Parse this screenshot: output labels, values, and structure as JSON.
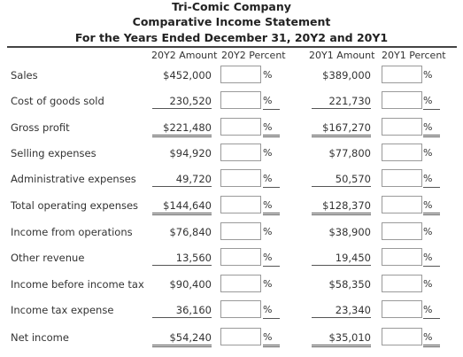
{
  "header": {
    "company": "Tri-Comic Company",
    "statement": "Comparative Income Statement",
    "period": "For the Years Ended December 31, 20Y2 and 20Y1"
  },
  "columns": {
    "y2_amount": "20Y2 Amount",
    "y2_percent": "20Y2 Percent",
    "y1_amount": "20Y1 Amount",
    "y1_percent": "20Y1 Percent"
  },
  "percent_sign": "%",
  "rows": [
    {
      "label": "Sales",
      "y2": "$452,000",
      "y1": "$389,000"
    },
    {
      "label": "Cost of goods sold",
      "y2": "230,520",
      "y1": "221,730"
    },
    {
      "label": "Gross profit",
      "y2": "$221,480",
      "y1": "$167,270"
    },
    {
      "label": "Selling expenses",
      "y2": "$94,920",
      "y1": "$77,800"
    },
    {
      "label": "Administrative expenses",
      "y2": "49,720",
      "y1": "50,570"
    },
    {
      "label": "Total operating expenses",
      "y2": "$144,640",
      "y1": "$128,370"
    },
    {
      "label": "Income from operations",
      "y2": "$76,840",
      "y1": "$38,900"
    },
    {
      "label": "Other revenue",
      "y2": "13,560",
      "y1": "19,450"
    },
    {
      "label": "Income before income tax",
      "y2": "$90,400",
      "y1": "$58,350"
    },
    {
      "label": "Income tax expense",
      "y2": "36,160",
      "y1": "23,340"
    },
    {
      "label": "Net income",
      "y2": "$54,240",
      "y1": "$35,010"
    }
  ]
}
